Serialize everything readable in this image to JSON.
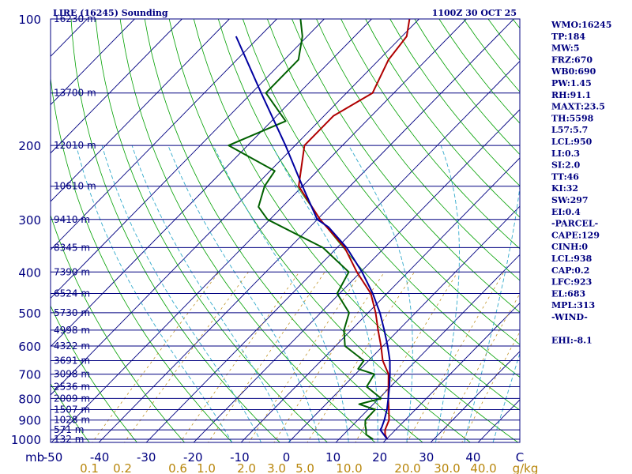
{
  "chart_data": {
    "type": "line",
    "title": "LIRE (16245) Sounding",
    "datetime": "1100Z 30 OCT 25",
    "pressure_axis_unit": "mb",
    "pressure_levels": [
      100,
      200,
      300,
      400,
      500,
      600,
      700,
      800,
      900,
      1000
    ],
    "pressure_range": [
      100,
      1050
    ],
    "heights": [
      {
        "p": 100,
        "label": "16230 m"
      },
      {
        "p": 150,
        "label": "13700 m"
      },
      {
        "p": 200,
        "label": "12010 m"
      },
      {
        "p": 250,
        "label": "10610 m"
      },
      {
        "p": 300,
        "label": "9410 m"
      },
      {
        "p": 350,
        "label": "8345 m"
      },
      {
        "p": 400,
        "label": "7390 m"
      },
      {
        "p": 450,
        "label": "6524 m"
      },
      {
        "p": 500,
        "label": "5730 m"
      },
      {
        "p": 550,
        "label": "4998 m"
      },
      {
        "p": 600,
        "label": "4322 m"
      },
      {
        "p": 650,
        "label": "3691 m"
      },
      {
        "p": 700,
        "label": "3098 m"
      },
      {
        "p": 750,
        "label": "2536 m"
      },
      {
        "p": 800,
        "label": "2009 m"
      },
      {
        "p": 850,
        "label": "1507 m"
      },
      {
        "p": 900,
        "label": "1028 m"
      },
      {
        "p": 950,
        "label": "571 m"
      },
      {
        "p": 1000,
        "label": "132 m"
      }
    ],
    "temperature_ticks": [
      "-50",
      "-40",
      "-30",
      "-20",
      "-10",
      "0",
      "10",
      "20",
      "30",
      "40",
      "C"
    ],
    "temperature_range": [
      -50,
      50
    ],
    "mixing_ratio_ticks": [
      "0.1",
      "0.2",
      "0.6",
      "1.0",
      "2.0",
      "3.0",
      "5.0",
      "10.0",
      "20.0",
      "30.0",
      "40.0",
      "g/kg"
    ],
    "series": [
      {
        "name": "Temperature",
        "color": "#b00000",
        "points": [
          {
            "p": 1000,
            "t": 20.2
          },
          {
            "p": 975,
            "t": 18.8
          },
          {
            "p": 950,
            "t": 17.8
          },
          {
            "p": 900,
            "t": 16.6
          },
          {
            "p": 850,
            "t": 14.4
          },
          {
            "p": 800,
            "t": 12.0
          },
          {
            "p": 750,
            "t": 9.6
          },
          {
            "p": 700,
            "t": 7.0
          },
          {
            "p": 650,
            "t": 3.0
          },
          {
            "p": 600,
            "t": -0.4
          },
          {
            "p": 550,
            "t": -4.3
          },
          {
            "p": 500,
            "t": -8.4
          },
          {
            "p": 450,
            "t": -13.4
          },
          {
            "p": 400,
            "t": -20.8
          },
          {
            "p": 350,
            "t": -28.4
          },
          {
            "p": 300,
            "t": -39.4
          },
          {
            "p": 250,
            "t": -50.8
          },
          {
            "p": 200,
            "t": -58.0
          },
          {
            "p": 170,
            "t": -58.0
          },
          {
            "p": 150,
            "t": -54.5
          },
          {
            "p": 125,
            "t": -58.0
          },
          {
            "p": 110,
            "t": -59.0
          },
          {
            "p": 100,
            "t": -62.0
          }
        ]
      },
      {
        "name": "Dewpoint",
        "color": "#006000",
        "points": [
          {
            "p": 1000,
            "t": 17.2
          },
          {
            "p": 975,
            "t": 14.8
          },
          {
            "p": 950,
            "t": 13.8
          },
          {
            "p": 925,
            "t": 12.6
          },
          {
            "p": 900,
            "t": 11.6
          },
          {
            "p": 850,
            "t": 11.5
          },
          {
            "p": 825,
            "t": 7.0
          },
          {
            "p": 800,
            "t": 10.5
          },
          {
            "p": 750,
            "t": 5.0
          },
          {
            "p": 700,
            "t": 4.0
          },
          {
            "p": 680,
            "t": -0.5
          },
          {
            "p": 650,
            "t": -1.0
          },
          {
            "p": 600,
            "t": -8.0
          },
          {
            "p": 550,
            "t": -11.5
          },
          {
            "p": 500,
            "t": -14.0
          },
          {
            "p": 450,
            "t": -20.5
          },
          {
            "p": 400,
            "t": -22.5
          },
          {
            "p": 350,
            "t": -33.0
          },
          {
            "p": 300,
            "t": -50.5
          },
          {
            "p": 280,
            "t": -55.0
          },
          {
            "p": 250,
            "t": -58.0
          },
          {
            "p": 230,
            "t": -59.0
          },
          {
            "p": 200,
            "t": -74.0
          },
          {
            "p": 175,
            "t": -67.0
          },
          {
            "p": 150,
            "t": -77.0
          },
          {
            "p": 125,
            "t": -77.0
          },
          {
            "p": 110,
            "t": -81.0
          },
          {
            "p": 100,
            "t": -85.0
          }
        ]
      },
      {
        "name": "Parcel",
        "color": "#0000a0",
        "points": [
          {
            "p": 1000,
            "t": 20.2
          },
          {
            "p": 950,
            "t": 16.8
          },
          {
            "p": 938,
            "t": 16.6
          },
          {
            "p": 900,
            "t": 15.6
          },
          {
            "p": 850,
            "t": 14.0
          },
          {
            "p": 800,
            "t": 12.0
          },
          {
            "p": 750,
            "t": 9.8
          },
          {
            "p": 700,
            "t": 7.3
          },
          {
            "p": 650,
            "t": 4.5
          },
          {
            "p": 600,
            "t": 1.0
          },
          {
            "p": 550,
            "t": -3.0
          },
          {
            "p": 500,
            "t": -7.5
          },
          {
            "p": 450,
            "t": -13.0
          },
          {
            "p": 400,
            "t": -19.7
          },
          {
            "p": 350,
            "t": -28.0
          },
          {
            "p": 313,
            "t": -36.0
          },
          {
            "p": 300,
            "t": -40.0
          },
          {
            "p": 250,
            "t": -50.0
          },
          {
            "p": 200,
            "t": -62.0
          },
          {
            "p": 150,
            "t": -78.0
          },
          {
            "p": 110,
            "t": -95.0
          }
        ]
      }
    ]
  },
  "indices": [
    "WMO:16245",
    "TP:184",
    "MW:5",
    "FRZ:670",
    "WB0:690",
    "PW:1.45",
    "RH:91.1",
    "MAXT:23.5",
    "TH:5598",
    "L57:5.7",
    "LCL:950",
    "LI:0.3",
    "SI:2.0",
    "TT:46",
    "KI:32",
    "SW:297",
    "EI:0.4",
    "-PARCEL-",
    "CAPE:129",
    "CINH:0",
    "LCL:938",
    "CAP:0.2",
    "LFC:923",
    "EL:683",
    "MPL:313",
    "-WIND-",
    "",
    "EHI:-8.1"
  ],
  "colors": {
    "frame": "#000080",
    "isobar": "#000080",
    "isotherm": "#000080",
    "dry_adiabat": "#00a000",
    "moist_adiabat": "#33aacc",
    "mixing_ratio": "#b8860b",
    "temperature": "#b00000",
    "dewpoint": "#006000",
    "parcel": "#0000a0",
    "mixing_label": "#b8860b"
  }
}
